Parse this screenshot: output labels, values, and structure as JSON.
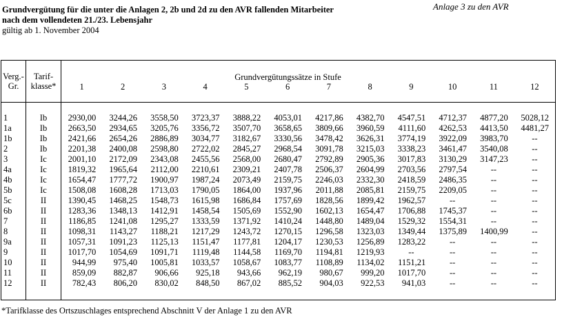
{
  "annotation": "Anlage 3 zu den AVR",
  "title": {
    "line1": "Grundvergütung für die unter die Anlagen 2, 2b und 2d zu den AVR fallenden Mitarbeiter",
    "line2": "nach dem vollendeten 21./23. Lebensjahr",
    "validity": "gültig ab 1. November 2004"
  },
  "table": {
    "verg_gr_header": [
      "Verg.-",
      "Gr."
    ],
    "tarifklasse_header": [
      "Tarif-",
      "klasse*"
    ],
    "stufen_header": "Grundvergütungssätze in Stufe",
    "stufen": [
      "1",
      "2",
      "3",
      "4",
      "5",
      "6",
      "7",
      "8",
      "9",
      "10",
      "11",
      "12"
    ],
    "empty_marker": "--",
    "rows": [
      {
        "verg_gr": "1",
        "tarifklasse": "Ib",
        "values": [
          "2930,00",
          "3244,26",
          "3558,50",
          "3723,37",
          "3888,22",
          "4053,01",
          "4217,86",
          "4382,70",
          "4547,51",
          "4712,37",
          "4877,20",
          "5028,12"
        ]
      },
      {
        "verg_gr": "1a",
        "tarifklasse": "Ib",
        "values": [
          "2663,50",
          "2934,65",
          "3205,76",
          "3356,72",
          "3507,70",
          "3658,65",
          "3809,66",
          "3960,59",
          "4111,60",
          "4262,53",
          "4413,50",
          "4481,27"
        ]
      },
      {
        "verg_gr": "1b",
        "tarifklasse": "Ib",
        "values": [
          "2421,66",
          "2654,26",
          "2886,89",
          "3034,77",
          "3182,67",
          "3330,56",
          "3478,42",
          "3626,31",
          "3774,19",
          "3922,09",
          "3983,70",
          "--"
        ]
      },
      {
        "verg_gr": "2",
        "tarifklasse": "Ib",
        "values": [
          "2201,38",
          "2400,08",
          "2598,80",
          "2722,02",
          "2845,27",
          "2968,54",
          "3091,78",
          "3215,03",
          "3338,23",
          "3461,47",
          "3540,08",
          "--"
        ]
      },
      {
        "verg_gr": "3",
        "tarifklasse": "Ic",
        "values": [
          "2001,10",
          "2172,09",
          "2343,08",
          "2455,56",
          "2568,00",
          "2680,47",
          "2792,89",
          "2905,36",
          "3017,83",
          "3130,29",
          "3147,23",
          "--"
        ]
      },
      {
        "verg_gr": "4a",
        "tarifklasse": "Ic",
        "values": [
          "1819,32",
          "1965,64",
          "2112,00",
          "2210,61",
          "2309,21",
          "2407,78",
          "2506,37",
          "2604,99",
          "2703,56",
          "2797,54",
          "--",
          "--"
        ]
      },
      {
        "verg_gr": "4b",
        "tarifklasse": "Ic",
        "values": [
          "1654,47",
          "1777,72",
          "1900,97",
          "1987,24",
          "2073,49",
          "2159,75",
          "2246,03",
          "2332,30",
          "2418,59",
          "2486,35",
          "--",
          "--"
        ]
      },
      {
        "verg_gr": "5b",
        "tarifklasse": "Ic",
        "values": [
          "1508,08",
          "1608,28",
          "1713,03",
          "1790,05",
          "1864,00",
          "1937,96",
          "2011,88",
          "2085,81",
          "2159,75",
          "2209,05",
          "--",
          "--"
        ]
      },
      {
        "verg_gr": "5c",
        "tarifklasse": "II",
        "values": [
          "1390,45",
          "1468,25",
          "1548,73",
          "1615,98",
          "1686,84",
          "1757,69",
          "1828,56",
          "1899,42",
          "1962,57",
          "--",
          "--",
          "--"
        ]
      },
      {
        "verg_gr": "6b",
        "tarifklasse": "II",
        "values": [
          "1283,36",
          "1348,13",
          "1412,91",
          "1458,54",
          "1505,69",
          "1552,90",
          "1602,13",
          "1654,47",
          "1706,88",
          "1745,37",
          "--",
          "--"
        ]
      },
      {
        "verg_gr": "7",
        "tarifklasse": "II",
        "values": [
          "1186,85",
          "1241,08",
          "1295,27",
          "1333,59",
          "1371,92",
          "1410,24",
          "1448,80",
          "1489,04",
          "1529,32",
          "1554,31",
          "--",
          "--"
        ]
      },
      {
        "verg_gr": "8",
        "tarifklasse": "II",
        "values": [
          "1098,31",
          "1143,27",
          "1188,21",
          "1217,29",
          "1243,72",
          "1270,15",
          "1296,58",
          "1323,03",
          "1349,44",
          "1375,89",
          "1400,99",
          "--"
        ]
      },
      {
        "verg_gr": "9a",
        "tarifklasse": "II",
        "values": [
          "1057,31",
          "1091,23",
          "1125,13",
          "1151,47",
          "1177,81",
          "1204,17",
          "1230,53",
          "1256,89",
          "1283,22",
          "--",
          "--",
          "--"
        ]
      },
      {
        "verg_gr": "9",
        "tarifklasse": "II",
        "values": [
          "1017,70",
          "1054,69",
          "1091,71",
          "1119,48",
          "1144,58",
          "1169,70",
          "1194,81",
          "1219,93",
          "--",
          "--",
          "--",
          "--"
        ]
      },
      {
        "verg_gr": "10",
        "tarifklasse": "II",
        "values": [
          "944,99",
          "975,40",
          "1005,81",
          "1033,57",
          "1058,67",
          "1083,77",
          "1108,89",
          "1134,02",
          "1151,21",
          "--",
          "--",
          "--"
        ]
      },
      {
        "verg_gr": "11",
        "tarifklasse": "II",
        "values": [
          "859,09",
          "882,87",
          "906,66",
          "925,18",
          "943,66",
          "962,19",
          "980,67",
          "999,20",
          "1017,70",
          "--",
          "--",
          "--"
        ]
      },
      {
        "verg_gr": "12",
        "tarifklasse": "II",
        "values": [
          "782,43",
          "806,20",
          "830,02",
          "848,50",
          "867,02",
          "885,52",
          "904,03",
          "922,53",
          "941,03",
          "--",
          "--",
          "--"
        ]
      }
    ]
  },
  "footnote": "*Tarifklasse des Ortszuschlages entsprechend Abschnitt V der Anlage 1 zu den AVR"
}
